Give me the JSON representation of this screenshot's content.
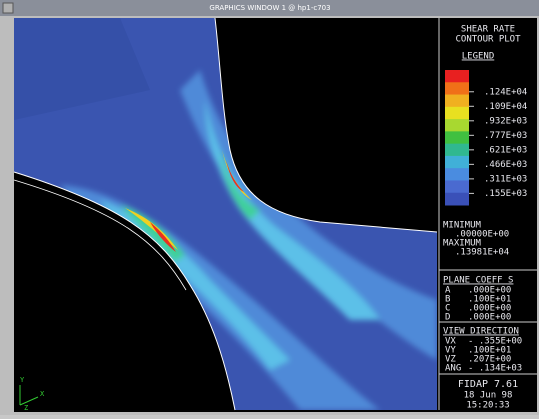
{
  "window": {
    "title": "GRAPHICS WINDOW 1 @ hp1-c703"
  },
  "panel": {
    "title": [
      "SHEAR RATE",
      "CONTOUR PLOT"
    ],
    "legend": {
      "heading": "LEGEND",
      "labels": [
        ".124E+04",
        ".109E+04",
        ".932E+03",
        ".777E+03",
        ".621E+03",
        ".466E+03",
        ".311E+03",
        ".155E+03"
      ]
    },
    "minimum": {
      "label": "MINIMUM",
      "value": ".00000E+00"
    },
    "maximum": {
      "label": "MAXIMUM",
      "value": ".13981E+04"
    },
    "plane": {
      "heading": "PLANE COEFF S",
      "rows": [
        [
          "A",
          ".000E+00"
        ],
        [
          "B",
          ".100E+01"
        ],
        [
          "C",
          ".000E+00"
        ],
        [
          "D",
          ".000E+00"
        ]
      ]
    },
    "view": {
      "heading": "VIEW DIRECTION",
      "rows": [
        [
          "VX",
          "- .355E+00"
        ],
        [
          "VY",
          ".100E+01"
        ],
        [
          "VZ",
          ".207E+00"
        ],
        [
          "ANG",
          "- .134E+03"
        ]
      ]
    },
    "footer": {
      "program": "FIDAP 7.61",
      "date": "18 Jun 98",
      "time": "15:20:33"
    }
  },
  "axes": [
    "Y",
    "X",
    "Z"
  ]
}
